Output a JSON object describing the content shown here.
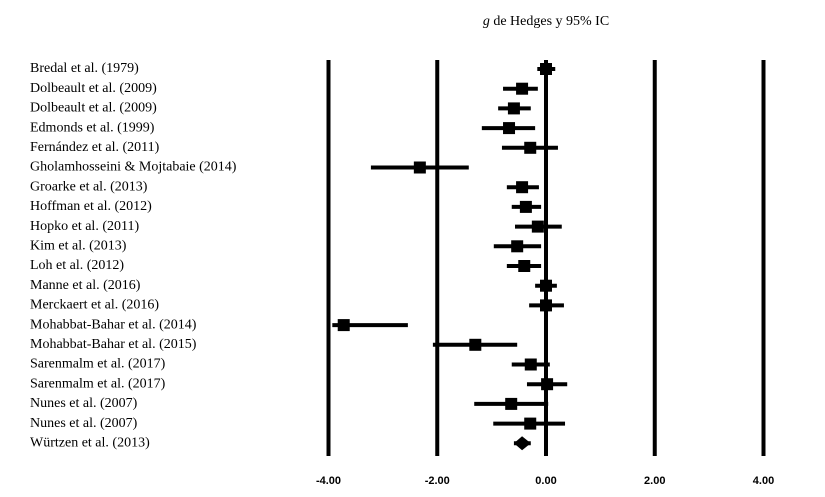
{
  "chart_data": {
    "type": "forest",
    "title_symbol": "g",
    "title": "de Hedges y 95% IC",
    "categories": [
      "Bredal et al. (1979)",
      "Dolbeault et al. (2009)",
      "Dolbeault et al. (2009)",
      "Edmonds et al. (1999)",
      "Fernández et al. (2011)",
      "Gholamhosseini & Mojtabaie (2014)",
      "Groarke et al. (2013)",
      "Hoffman et al. (2012)",
      "Hopko et al. (2011)",
      "Kim et al. (2013)",
      "Loh et al. (2012)",
      "Manne et al. (2016)",
      "Merckaert et al. (2016)",
      "Mohabbat-Bahar et al. (2014)",
      "Mohabbat-Bahar et al. (2015)",
      "Sarenmalm et al. (2017)",
      "Sarenmalm et al. (2017)",
      "Nunes et al. (2007)",
      "Nunes et al. (2007)",
      "Würtzen et al. (2013)"
    ],
    "values": [
      0.0,
      -0.44,
      -0.59,
      -0.68,
      -0.29,
      -2.32,
      -0.44,
      -0.37,
      -0.15,
      -0.53,
      -0.4,
      0.0,
      0.0,
      -3.72,
      -1.3,
      -0.28,
      0.02,
      -0.64,
      -0.29,
      -0.44
    ],
    "lower": [
      -0.16,
      -0.79,
      -0.88,
      -1.18,
      -0.81,
      -3.22,
      -0.72,
      -0.63,
      -0.57,
      -0.96,
      -0.72,
      -0.2,
      -0.31,
      -3.93,
      -2.08,
      -0.63,
      -0.35,
      -1.32,
      -0.97,
      -0.59
    ],
    "upper": [
      0.17,
      -0.15,
      -0.28,
      -0.2,
      0.22,
      -1.42,
      -0.13,
      -0.09,
      0.29,
      -0.09,
      -0.09,
      0.2,
      0.33,
      -2.54,
      -0.53,
      0.07,
      0.39,
      0.04,
      0.35,
      -0.28
    ],
    "markers": [
      "square",
      "square",
      "square",
      "square",
      "square",
      "square",
      "square",
      "square",
      "square",
      "square",
      "square",
      "square",
      "square",
      "square",
      "square",
      "square",
      "square",
      "square",
      "square",
      "diamond"
    ],
    "color": "#000000",
    "xlim": [
      -4.3,
      4.3
    ],
    "xticks": [
      {
        "value": -4,
        "label": "-4.00"
      },
      {
        "value": -2,
        "label": "-2.00"
      },
      {
        "value": 0,
        "label": "0.00"
      },
      {
        "value": 2,
        "label": "2.00"
      },
      {
        "value": 4,
        "label": "4.00"
      }
    ],
    "grid": true
  }
}
